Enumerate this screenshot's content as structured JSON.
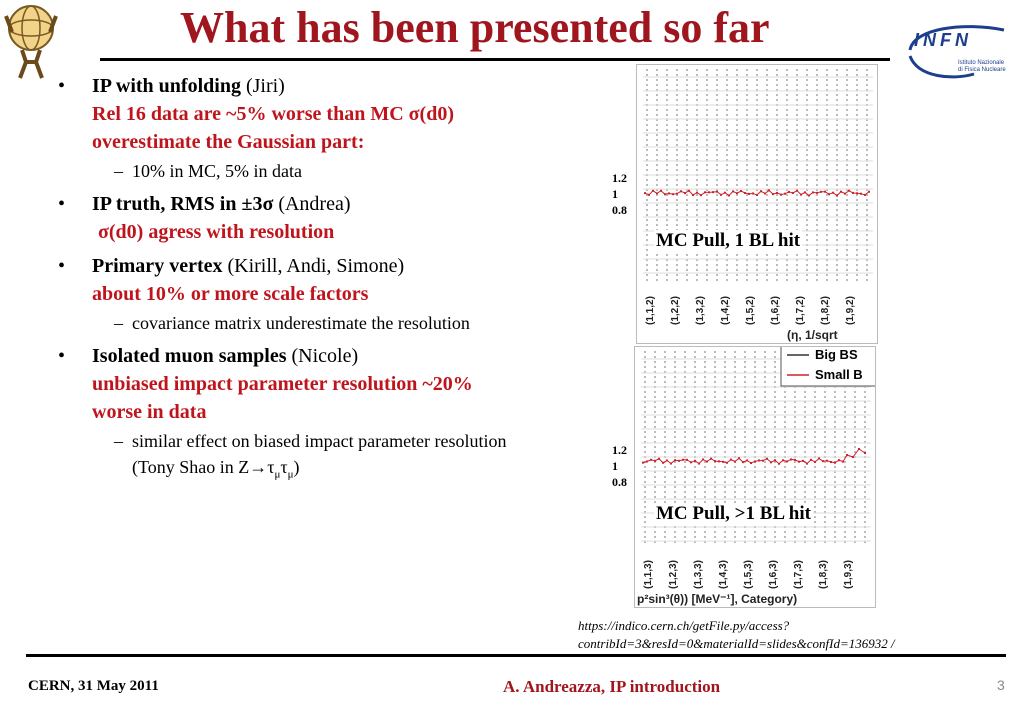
{
  "title": "What has been presented so far",
  "logo_right": {
    "text": "INFN",
    "sub1": "Istituto Nazionale",
    "sub2": "di Fisica Nucleare"
  },
  "bullets": [
    {
      "head": "IP with unfolding",
      "author": " (Jiri)",
      "red": "Rel 16 data are ~5% worse than MC σ(d0) overestimate the Gaussian part:",
      "sub": [
        "10% in MC,  5% in data"
      ]
    },
    {
      "head": "IP truth, RMS in ±3σ",
      "author": " (Andrea)",
      "red": "σ(d0) agress with resolution",
      "sub": []
    },
    {
      "head": "Primary vertex",
      "author": " (Kirill, Andi, Simone)",
      "red": "about 10% or more scale factors",
      "sub": [
        "covariance matrix underestimate the resolution"
      ]
    },
    {
      "head": "Isolated muon samples",
      "author": " (Nicole)",
      "red": "unbiased impact parameter resolution ~20% worse in data",
      "sub": [
        "similar effect on biased impact parameter resolution"
      ],
      "sub_extra": {
        "prefix": "(Tony Shao in Z→τ",
        "mu1": "μ",
        "tau": "τ",
        "mu2": "μ",
        "suffix": ")"
      }
    }
  ],
  "plots": [
    {
      "label": "MC Pull, 1 BL hit",
      "yticks": [
        "1.2",
        "1",
        "0.8"
      ],
      "xticks": [
        "(1,1,2)",
        "(1,2,2)",
        "(1,3,2)",
        "(1,4,2)",
        "(1,5,2)",
        "(1,6,2)",
        "(1,7,2)",
        "(1,8,2)",
        "(1,9,2)"
      ],
      "xlabel": "(η, 1/sqrt"
    },
    {
      "label": "MC Pull, >1 BL hit",
      "yticks": [
        "1.2",
        "1",
        "0.8"
      ],
      "xticks": [
        "(1,1,3)",
        "(1,2,3)",
        "(1,3,3)",
        "(1,4,3)",
        "(1,5,3)",
        "(1,6,3)",
        "(1,7,3)",
        "(1,8,3)",
        "(1,9,3)"
      ],
      "xlabel": "p²sin³(θ)) [MeV⁻¹], Category)",
      "legend": [
        "Big BS",
        "Small B"
      ]
    }
  ],
  "url": "https://indico.cern.ch/getFile.py/access?contribId=3&resId=0&materialId=slides&confId=136932 /",
  "footer": {
    "left": "CERN, 31 May 2011",
    "center": "A. Andreazza, IP introduction",
    "page": "3"
  },
  "colors": {
    "title": "#a0161e",
    "highlight": "#c0141c",
    "series": "#d0202a",
    "infn": "#1c3e8c"
  }
}
